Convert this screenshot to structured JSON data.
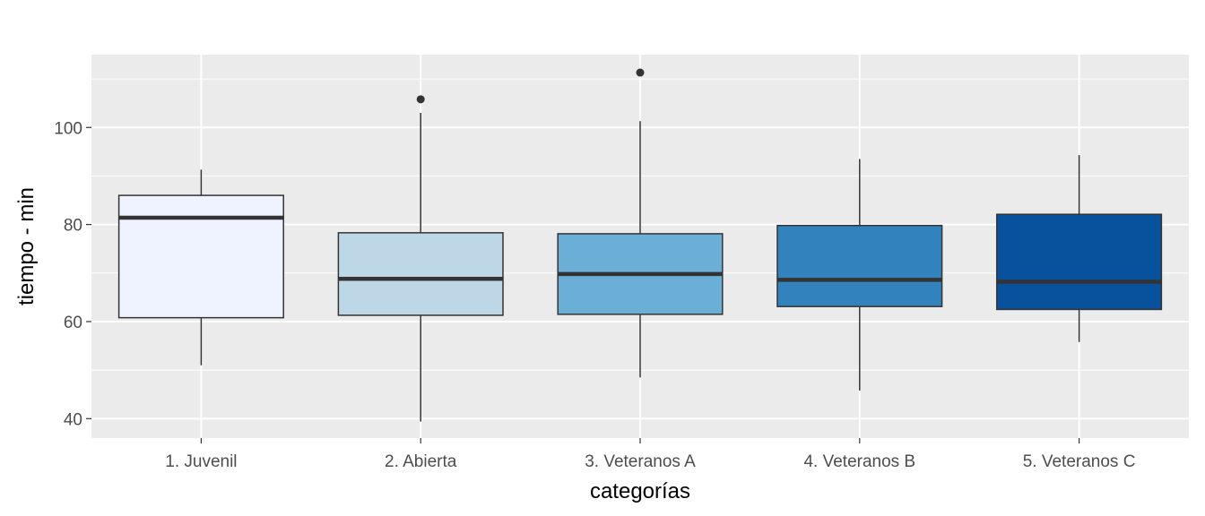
{
  "chart_data": {
    "type": "boxplot",
    "title": "",
    "xlabel": "categorías",
    "ylabel": "tiempo - min",
    "ylim": [
      36,
      115
    ],
    "yticks": [
      40,
      60,
      80,
      100
    ],
    "grid": true,
    "legend": "none",
    "categories": [
      "1. Juvenil",
      "2. Abierta",
      "3. Veteranos A",
      "4. Veteranos B",
      "5. Veteranos C"
    ],
    "boxes": [
      {
        "category": "1. Juvenil",
        "whisker_low": 51,
        "q1": 60.8,
        "median": 81.4,
        "q3": 86,
        "whisker_high": 91.3,
        "outliers": [],
        "fill": "#eff3ff"
      },
      {
        "category": "2. Abierta",
        "whisker_low": 39.4,
        "q1": 61.3,
        "median": 68.8,
        "q3": 78.3,
        "whisker_high": 103,
        "outliers": [
          105.8
        ],
        "fill": "#bdd7e7"
      },
      {
        "category": "3. Veteranos A",
        "whisker_low": 48.5,
        "q1": 61.5,
        "median": 69.8,
        "q3": 78.1,
        "whisker_high": 101.3,
        "outliers": [
          111.3
        ],
        "fill": "#6baed6"
      },
      {
        "category": "4. Veteranos B",
        "whisker_low": 45.8,
        "q1": 63.1,
        "median": 68.6,
        "q3": 79.8,
        "whisker_high": 93.5,
        "outliers": [],
        "fill": "#3182bd"
      },
      {
        "category": "5. Veteranos C",
        "whisker_low": 55.8,
        "q1": 62.5,
        "median": 68.2,
        "q3": 82.1,
        "whisker_high": 94.3,
        "outliers": [],
        "fill": "#08519c"
      }
    ],
    "colors": {
      "panel_background": "#ebebeb",
      "grid": "#ffffff",
      "outline": "#333333"
    }
  }
}
